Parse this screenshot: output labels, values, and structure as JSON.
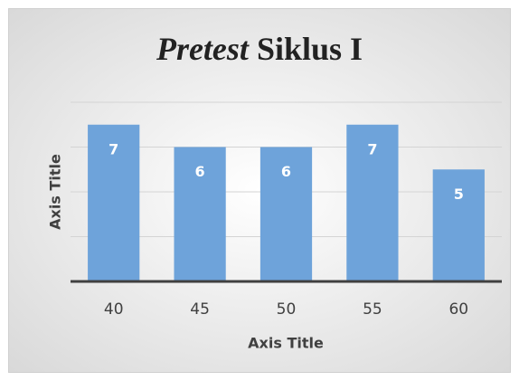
{
  "chart_data": {
    "type": "bar",
    "title": [
      "Pretest",
      "Siklus I"
    ],
    "x_label": "Axis Title",
    "y_label": "Axis Title",
    "categories": [
      "40",
      "45",
      "50",
      "55",
      "60"
    ],
    "values": [
      7,
      6,
      6,
      7,
      5
    ],
    "color": "#6ea3da",
    "ylim": [
      0,
      8
    ],
    "yticks": [
      0,
      2,
      4,
      6,
      8
    ],
    "grid": true
  }
}
